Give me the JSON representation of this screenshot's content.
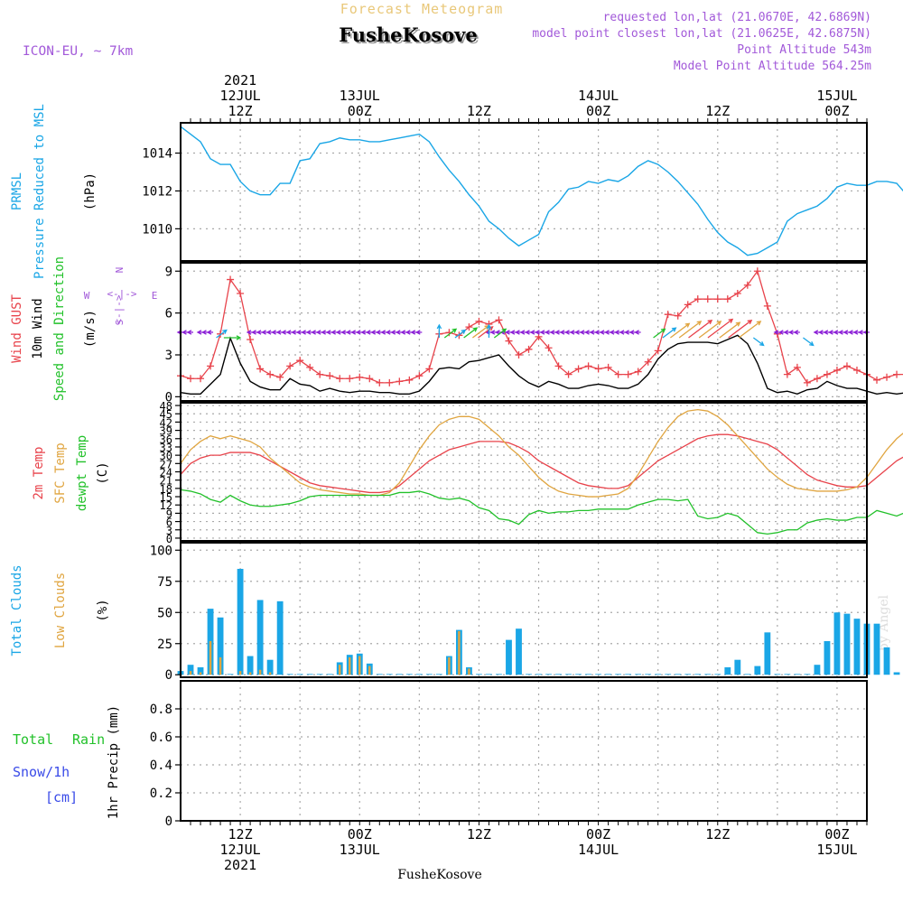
{
  "header": {
    "title": "Forecast Meteogram",
    "location": "FusheKosove",
    "model": "ICON-EU, ~ 7km",
    "requested": "requested lon,lat (21.0670E, 42.6869N)",
    "closest": "model point closest lon,lat (21.0625E, 42.6875N)",
    "altitude": "Point Altitude 543m",
    "model_altitude": "Model Point Altitude 564.25m"
  },
  "footer": {
    "location": "FusheKosove",
    "credit": "by Angel"
  },
  "colors": {
    "pressure": "#1aa6e6",
    "gust": "#e8434b",
    "wind": "#000000",
    "arrow_purple": "#8b1fd6",
    "t2m": "#e8434b",
    "sfc": "#e0a540",
    "dewpt": "#22c12a",
    "total_clouds": "#1aa6e6",
    "low_clouds": "#e0a540",
    "rain_label": "#22c12a",
    "snow_label": "#3a4be8",
    "meta": "#a259d9",
    "grid": "#a9a9a9"
  },
  "time_axis": {
    "start_hour": 6,
    "end_hour": 75,
    "top_labels": [
      {
        "hour": 12,
        "lines": [
          "2021",
          "12JUL",
          "12Z"
        ]
      },
      {
        "hour": 24,
        "lines": [
          "13JUL",
          "00Z"
        ]
      },
      {
        "hour": 36,
        "lines": [
          "12Z"
        ]
      },
      {
        "hour": 48,
        "lines": [
          "14JUL",
          "00Z"
        ]
      },
      {
        "hour": 60,
        "lines": [
          "12Z"
        ]
      },
      {
        "hour": 72,
        "lines": [
          "15JUL",
          "00Z"
        ]
      }
    ],
    "bottom_labels": [
      {
        "hour": 12,
        "lines": [
          "12Z",
          "12JUL",
          "2021"
        ]
      },
      {
        "hour": 24,
        "lines": [
          "00Z",
          "13JUL"
        ]
      },
      {
        "hour": 36,
        "lines": [
          "12Z"
        ]
      },
      {
        "hour": 48,
        "lines": [
          "00Z",
          "14JUL"
        ]
      },
      {
        "hour": 60,
        "lines": [
          "12Z"
        ]
      },
      {
        "hour": 72,
        "lines": [
          "00Z",
          "15JUL"
        ]
      }
    ]
  },
  "panels": {
    "pressure": {
      "label_lines": [
        {
          "text": "PRMSL",
          "color": "#1aa6e6"
        },
        {
          "text": "Pressure Reduced to MSL",
          "color": "#1aa6e6"
        },
        {
          "text": "(hPa)",
          "color": "#000000"
        }
      ],
      "ylim": [
        1008.3,
        1015.6
      ],
      "yticks": [
        1010,
        1012,
        1014
      ]
    },
    "wind": {
      "label_lines": [
        {
          "text": "Wind GUST",
          "color": "#e8434b"
        },
        {
          "text": "10m Wind",
          "color": "#000000"
        },
        {
          "text": "Speed and Direction",
          "color": "#22c12a"
        },
        {
          "text": "(m/s)",
          "color": "#000000"
        }
      ],
      "compass": {
        "n": "N",
        "s": "S",
        "w": "W",
        "e": "E"
      },
      "ylim": [
        -0.3,
        9.6
      ],
      "yticks": [
        0,
        3,
        6,
        9
      ]
    },
    "temp": {
      "label_lines": [
        {
          "text": "2m Temp",
          "color": "#e8434b"
        },
        {
          "text": "SFC Temp",
          "color": "#e0a540"
        },
        {
          "text": "dewpt Temp",
          "color": "#22c12a"
        },
        {
          "text": "(C)",
          "color": "#000000"
        }
      ],
      "ylim": [
        -1,
        49
      ],
      "yticks": [
        0,
        3,
        6,
        9,
        12,
        15,
        18,
        21,
        24,
        27,
        30,
        33,
        36,
        39,
        42,
        45,
        48
      ]
    },
    "clouds": {
      "label_lines": [
        {
          "text": "Total Clouds",
          "color": "#1aa6e6"
        },
        {
          "text": "Low Clouds",
          "color": "#e0a540"
        },
        {
          "text": "(%)",
          "color": "#000000"
        }
      ],
      "ylim": [
        -2,
        106
      ],
      "yticks": [
        0,
        25,
        50,
        75,
        100
      ]
    },
    "precip": {
      "total_label": "Total",
      "rain_label": "Rain",
      "snow_label": "Snow/1h",
      "cm_label": "[cm]",
      "axis_label": "1hr Precip (mm)",
      "ylim": [
        0,
        1.0
      ],
      "yticks": [
        0,
        0.2,
        0.4,
        0.6,
        0.8
      ]
    }
  },
  "chart_data": [
    {
      "type": "line",
      "name": "pressure",
      "xlabel": "",
      "ylabel": "PRMSL Pressure Reduced to MSL (hPa)",
      "ylim": [
        1008.3,
        1015.6
      ],
      "x_start_hour": 6,
      "x_step_hours": 1,
      "series": [
        {
          "name": "PRMSL",
          "values": [
            1015.4,
            1015.0,
            1014.6,
            1013.7,
            1013.4,
            1013.4,
            1012.5,
            1012.0,
            1011.8,
            1011.8,
            1012.4,
            1012.4,
            1013.6,
            1013.7,
            1014.5,
            1014.6,
            1014.8,
            1014.7,
            1014.7,
            1014.6,
            1014.6,
            1014.7,
            1014.8,
            1014.9,
            1015.0,
            1014.6,
            1013.8,
            1013.1,
            1012.5,
            1011.8,
            1011.2,
            1010.4,
            1010.0,
            1009.5,
            1009.1,
            1009.4,
            1009.7,
            1010.9,
            1011.4,
            1012.1,
            1012.2,
            1012.5,
            1012.4,
            1012.6,
            1012.5,
            1012.8,
            1013.3,
            1013.6,
            1013.4,
            1013.0,
            1012.5,
            1011.9,
            1011.3,
            1010.5,
            1009.8,
            1009.3,
            1009.0,
            1008.6,
            1008.7,
            1009.0,
            1009.3,
            1010.4,
            1010.8,
            1011.0,
            1011.2,
            1011.6,
            1012.2,
            1012.4,
            1012.3,
            1012.3,
            1012.5,
            1012.5,
            1012.4,
            1011.8,
            1011.1,
            1010.4,
            1009.3
          ]
        }
      ]
    },
    {
      "type": "line",
      "name": "wind",
      "xlabel": "",
      "ylabel": "(m/s)",
      "ylim": [
        -0.3,
        9.6
      ],
      "x_start_hour": 6,
      "x_step_hours": 1,
      "series": [
        {
          "name": "Wind GUST",
          "values": [
            1.5,
            1.3,
            1.3,
            2.2,
            4.5,
            8.4,
            7.4,
            4.1,
            2.0,
            1.6,
            1.4,
            2.2,
            2.6,
            2.1,
            1.6,
            1.5,
            1.3,
            1.3,
            1.4,
            1.3,
            1.0,
            1.0,
            1.1,
            1.2,
            1.5,
            2.0,
            4.5,
            4.6,
            4.4,
            5.0,
            5.4,
            5.2,
            5.5,
            4.0,
            3.0,
            3.4,
            4.3,
            3.5,
            2.2,
            1.6,
            2.0,
            2.2,
            2.0,
            2.1,
            1.6,
            1.6,
            1.8,
            2.5,
            3.3,
            5.9,
            5.8,
            6.6,
            7.0,
            7.0,
            7.0,
            7.0,
            7.4,
            8.0,
            9.0,
            6.5,
            4.5,
            1.6,
            2.1,
            1.0,
            1.3,
            1.6,
            1.9,
            2.2,
            1.9,
            1.6,
            1.2,
            1.4,
            1.6,
            1.6,
            3.0,
            3.6
          ]
        },
        {
          "name": "10m Wind",
          "values": [
            0.3,
            0.2,
            0.2,
            0.9,
            1.6,
            4.2,
            2.4,
            1.1,
            0.7,
            0.5,
            0.5,
            1.3,
            0.9,
            0.8,
            0.4,
            0.6,
            0.4,
            0.3,
            0.4,
            0.4,
            0.3,
            0.3,
            0.2,
            0.2,
            0.4,
            1.1,
            2.0,
            2.1,
            2.0,
            2.5,
            2.6,
            2.8,
            3.0,
            2.2,
            1.5,
            1.0,
            0.7,
            1.1,
            0.9,
            0.6,
            0.6,
            0.8,
            0.9,
            0.8,
            0.6,
            0.6,
            0.9,
            1.6,
            2.7,
            3.4,
            3.8,
            3.9,
            3.9,
            3.9,
            3.8,
            4.1,
            4.4,
            3.8,
            2.4,
            0.6,
            0.3,
            0.4,
            0.2,
            0.5,
            0.6,
            1.1,
            0.8,
            0.6,
            0.6,
            0.4,
            0.2,
            0.3,
            0.2,
            0.3,
            1.0,
            0.9
          ]
        }
      ]
    },
    {
      "type": "line",
      "name": "temperature",
      "xlabel": "",
      "ylabel": "(C)",
      "ylim": [
        -1,
        49
      ],
      "x_start_hour": 6,
      "x_step_hours": 1,
      "series": [
        {
          "name": "2m Temp",
          "values": [
            23,
            27,
            29,
            30,
            30,
            31,
            31,
            31,
            30,
            28,
            26,
            24,
            22,
            20,
            19,
            18.5,
            18,
            17.5,
            17,
            16.5,
            16.5,
            17,
            19,
            22,
            25,
            28,
            30,
            32,
            33,
            34,
            35,
            35,
            35,
            34.5,
            33,
            31,
            28,
            26,
            24,
            22,
            20,
            19,
            18.5,
            18,
            18,
            19,
            22,
            25,
            28,
            30,
            32,
            34,
            36,
            37,
            37.5,
            37.5,
            37,
            36,
            35,
            34,
            32,
            29,
            26,
            23,
            21,
            20,
            19,
            18.5,
            18.5,
            19,
            22,
            25,
            28,
            30,
            32,
            33.5,
            34.5
          ]
        },
        {
          "name": "SFC Temp",
          "values": [
            27,
            32,
            35,
            37,
            36,
            37,
            36,
            35,
            33,
            29,
            26,
            23,
            20,
            18.5,
            17.5,
            17,
            16.5,
            16,
            16,
            15.5,
            15.5,
            16.5,
            20,
            26,
            32,
            37,
            41,
            43,
            44,
            44,
            43,
            40,
            37,
            33,
            30,
            26,
            22,
            19,
            17,
            16,
            15.5,
            15,
            15,
            15.5,
            16,
            18,
            23,
            29,
            35,
            40,
            44,
            46,
            46.5,
            46,
            44,
            41,
            37,
            33,
            29,
            25,
            22,
            19.5,
            18,
            17.5,
            17,
            17,
            17,
            17.5,
            18.5,
            22,
            27,
            32,
            36,
            39,
            42,
            43
          ]
        },
        {
          "name": "dewpt Temp",
          "values": [
            17.5,
            17,
            16,
            14,
            13,
            15.5,
            13.5,
            12,
            11.5,
            11.5,
            12,
            12.5,
            13.5,
            15,
            15.5,
            15.5,
            15.5,
            15.5,
            15.5,
            15.5,
            15.5,
            15.5,
            16.5,
            16.5,
            17,
            16,
            14.5,
            14,
            14.5,
            13.5,
            11,
            10,
            7,
            6.5,
            5,
            8.5,
            10,
            9,
            9.5,
            9.5,
            10,
            10,
            10.5,
            10.5,
            10.5,
            10.5,
            12,
            13,
            14,
            14,
            13.5,
            14,
            8,
            7,
            7.5,
            9,
            8,
            5,
            2,
            1.5,
            2,
            3,
            3,
            5.5,
            6.5,
            7,
            6.5,
            6.5,
            7.5,
            7.5,
            10,
            9,
            8,
            9.5,
            8.5,
            8.5,
            7.5
          ]
        }
      ]
    },
    {
      "type": "bar",
      "name": "clouds",
      "xlabel": "",
      "ylabel": "(%)",
      "ylim": [
        -2,
        106
      ],
      "x_start_hour": 6,
      "x_step_hours": 1,
      "series": [
        {
          "name": "Total Clouds",
          "values": [
            3,
            8,
            6,
            53,
            46,
            0,
            85,
            15,
            60,
            12,
            59,
            0,
            0,
            0,
            0,
            0,
            10,
            16,
            17,
            9,
            0,
            0,
            0,
            0,
            0,
            0,
            0,
            15,
            36,
            6,
            0,
            0,
            0,
            28,
            37,
            0,
            0,
            0,
            0,
            0,
            0,
            0,
            0,
            0,
            0,
            0,
            0,
            0,
            0,
            0,
            0,
            0,
            0,
            0,
            0,
            6,
            12,
            0,
            7,
            34,
            0,
            0,
            0,
            0,
            8,
            27,
            50,
            49,
            45,
            41,
            41,
            22,
            2,
            0,
            0,
            1
          ]
        },
        {
          "name": "Low Clouds",
          "values": [
            1,
            3,
            2,
            27,
            14,
            0,
            3,
            2,
            4,
            2,
            0,
            0,
            0,
            0,
            0,
            0,
            8,
            14,
            15,
            7,
            0,
            0,
            0,
            0,
            0,
            0,
            0,
            14,
            35,
            5,
            0,
            0,
            0,
            0,
            0,
            0,
            0,
            0,
            0,
            0,
            0,
            0,
            0,
            0,
            0,
            0,
            0,
            0,
            0,
            0,
            0,
            0,
            0,
            0,
            0,
            0,
            0,
            0,
            0,
            0,
            0,
            0,
            0,
            0,
            0,
            0,
            0,
            0,
            0,
            0,
            0,
            0,
            0,
            0,
            0,
            0
          ]
        }
      ]
    },
    {
      "type": "bar",
      "name": "precipitation",
      "xlabel": "",
      "ylabel": "1hr Precip (mm)",
      "ylim": [
        0,
        1.0
      ],
      "series": [
        {
          "name": "Total Rain",
          "values": []
        },
        {
          "name": "Snow/1h",
          "values": []
        }
      ]
    }
  ],
  "wind_arrows": {
    "purple_ranges": [
      [
        6,
        7
      ],
      [
        8,
        9
      ],
      [
        13,
        30
      ],
      [
        37,
        52
      ],
      [
        66,
        68
      ],
      [
        70,
        75
      ]
    ],
    "colored": [
      {
        "hour": 10,
        "dir": "NE",
        "color": "#1aa6e6",
        "len": 14
      },
      {
        "hour": 11,
        "dir": "E",
        "color": "#22c12a",
        "len": 18
      },
      {
        "hour": 32,
        "dir": "N",
        "color": "#1aa6e6",
        "len": 14
      },
      {
        "hour": 33,
        "dir": "NE",
        "color": "#22c12a",
        "len": 16
      },
      {
        "hour": 34,
        "dir": "NE",
        "color": "#1aa6e6",
        "len": 14
      },
      {
        "hour": 35,
        "dir": "NE",
        "color": "#22c12a",
        "len": 18
      },
      {
        "hour": 36,
        "dir": "NE",
        "color": "#e0a540",
        "len": 22
      },
      {
        "hour": 36.5,
        "dir": "NE",
        "color": "#e8434b",
        "len": 20
      },
      {
        "hour": 37,
        "dir": "N",
        "color": "#1aa6e6",
        "len": 14
      },
      {
        "hour": 38,
        "dir": "NE",
        "color": "#22c12a",
        "len": 16
      },
      {
        "hour": 54,
        "dir": "NE",
        "color": "#22c12a",
        "len": 16
      },
      {
        "hour": 55,
        "dir": "NE",
        "color": "#1aa6e6",
        "len": 18
      },
      {
        "hour": 56,
        "dir": "NE",
        "color": "#e0a540",
        "len": 26
      },
      {
        "hour": 57,
        "dir": "NE",
        "color": "#e0a540",
        "len": 30
      },
      {
        "hour": 58,
        "dir": "NE",
        "color": "#e8434b",
        "len": 32
      },
      {
        "hour": 59,
        "dir": "NE",
        "color": "#e0a540",
        "len": 30
      },
      {
        "hour": 60,
        "dir": "NE",
        "color": "#e8434b",
        "len": 34
      },
      {
        "hour": 61,
        "dir": "NE",
        "color": "#e0a540",
        "len": 28
      },
      {
        "hour": 62,
        "dir": "NE",
        "color": "#e8434b",
        "len": 32
      },
      {
        "hour": 63,
        "dir": "NE",
        "color": "#e0a540",
        "len": 30
      },
      {
        "hour": 64,
        "dir": "SE",
        "color": "#1aa6e6",
        "len": 14
      },
      {
        "hour": 69,
        "dir": "SE",
        "color": "#1aa6e6",
        "len": 14
      }
    ]
  }
}
